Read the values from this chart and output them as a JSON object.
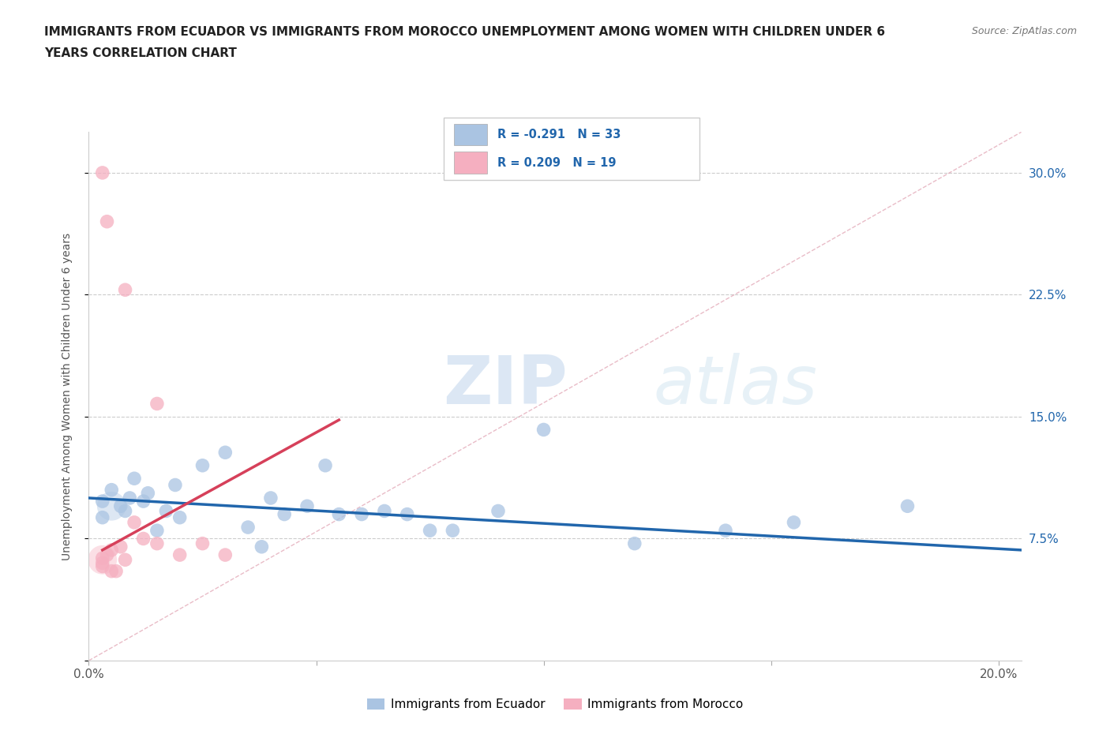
{
  "title_line1": "IMMIGRANTS FROM ECUADOR VS IMMIGRANTS FROM MOROCCO UNEMPLOYMENT AMONG WOMEN WITH CHILDREN UNDER 6",
  "title_line2": "YEARS CORRELATION CHART",
  "source_text": "Source: ZipAtlas.com",
  "ylabel": "Unemployment Among Women with Children Under 6 years",
  "xlim": [
    0.0,
    0.205
  ],
  "ylim": [
    0.0,
    0.325
  ],
  "xticks": [
    0.0,
    0.05,
    0.1,
    0.15,
    0.2
  ],
  "xtick_labels": [
    "0.0%",
    "",
    "",
    "",
    "20.0%"
  ],
  "ytick_labels_right": [
    "",
    "7.5%",
    "15.0%",
    "22.5%",
    "30.0%"
  ],
  "yticks": [
    0.0,
    0.075,
    0.15,
    0.225,
    0.3
  ],
  "watermark_ZIP": "ZIP",
  "watermark_atlas": "atlas",
  "legend_r1": "R = -0.291   N = 33",
  "legend_r2": "R = 0.209   N = 19",
  "ecuador_color": "#aac4e2",
  "morocco_color": "#f5afc0",
  "ecuador_line_color": "#2166ac",
  "morocco_line_color": "#d6405a",
  "ecuador_scatter": [
    [
      0.003,
      0.098
    ],
    [
      0.003,
      0.088
    ],
    [
      0.005,
      0.105
    ],
    [
      0.007,
      0.095
    ],
    [
      0.008,
      0.092
    ],
    [
      0.009,
      0.1
    ],
    [
      0.01,
      0.112
    ],
    [
      0.012,
      0.098
    ],
    [
      0.013,
      0.103
    ],
    [
      0.015,
      0.08
    ],
    [
      0.017,
      0.092
    ],
    [
      0.019,
      0.108
    ],
    [
      0.02,
      0.088
    ],
    [
      0.025,
      0.12
    ],
    [
      0.03,
      0.128
    ],
    [
      0.035,
      0.082
    ],
    [
      0.038,
      0.07
    ],
    [
      0.04,
      0.1
    ],
    [
      0.043,
      0.09
    ],
    [
      0.048,
      0.095
    ],
    [
      0.052,
      0.12
    ],
    [
      0.055,
      0.09
    ],
    [
      0.06,
      0.09
    ],
    [
      0.065,
      0.092
    ],
    [
      0.07,
      0.09
    ],
    [
      0.075,
      0.08
    ],
    [
      0.08,
      0.08
    ],
    [
      0.09,
      0.092
    ],
    [
      0.1,
      0.142
    ],
    [
      0.12,
      0.072
    ],
    [
      0.14,
      0.08
    ],
    [
      0.155,
      0.085
    ],
    [
      0.18,
      0.095
    ]
  ],
  "morocco_scatter": [
    [
      0.003,
      0.063
    ],
    [
      0.003,
      0.06
    ],
    [
      0.003,
      0.058
    ],
    [
      0.004,
      0.065
    ],
    [
      0.005,
      0.068
    ],
    [
      0.005,
      0.055
    ],
    [
      0.006,
      0.055
    ],
    [
      0.007,
      0.07
    ],
    [
      0.008,
      0.062
    ],
    [
      0.01,
      0.085
    ],
    [
      0.012,
      0.075
    ],
    [
      0.015,
      0.072
    ],
    [
      0.02,
      0.065
    ],
    [
      0.025,
      0.072
    ],
    [
      0.03,
      0.065
    ],
    [
      0.003,
      0.3
    ],
    [
      0.004,
      0.27
    ],
    [
      0.008,
      0.228
    ],
    [
      0.015,
      0.158
    ]
  ],
  "ecuador_trend_x": [
    0.0,
    0.205
  ],
  "ecuador_trend_y": [
    0.1,
    0.068
  ],
  "morocco_trend_x": [
    0.003,
    0.055
  ],
  "morocco_trend_y": [
    0.068,
    0.148
  ],
  "diag_line_x": [
    0.0,
    0.205
  ],
  "diag_line_y": [
    0.0,
    0.325
  ]
}
